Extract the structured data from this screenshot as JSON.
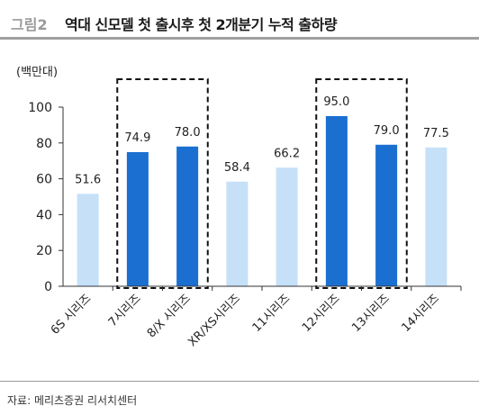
{
  "header": {
    "figure_label": "그림2",
    "title": "역대 신모델 첫 출시후 첫 2개분기 누적 출하량"
  },
  "source": "자료: 메리츠증권 리서치센터",
  "chart_data": {
    "type": "bar",
    "unit_label": "(백만대)",
    "categories": [
      "6S 시리즈",
      "7시리즈",
      "8/X 시리즈",
      "XR/XS시리즈",
      "11시리즈",
      "12시리즈",
      "13시리즈",
      "14시리즈"
    ],
    "values": [
      51.6,
      74.9,
      78.0,
      58.4,
      66.2,
      95.0,
      79.0,
      77.5
    ],
    "value_labels": [
      "51.6",
      "74.9",
      "78.0",
      "58.4",
      "66.2",
      "95.0",
      "79.0",
      "77.5"
    ],
    "highlighted": [
      false,
      true,
      true,
      false,
      false,
      true,
      true,
      false
    ],
    "dashed_groups": [
      [
        1,
        2
      ],
      [
        5,
        6
      ]
    ],
    "ylim": [
      0,
      100
    ],
    "yticks": [
      0,
      20,
      40,
      60,
      80,
      100
    ],
    "colors": {
      "highlight": "#1a6fd1",
      "normal": "#c6e0f8",
      "axis": "#333333"
    }
  }
}
